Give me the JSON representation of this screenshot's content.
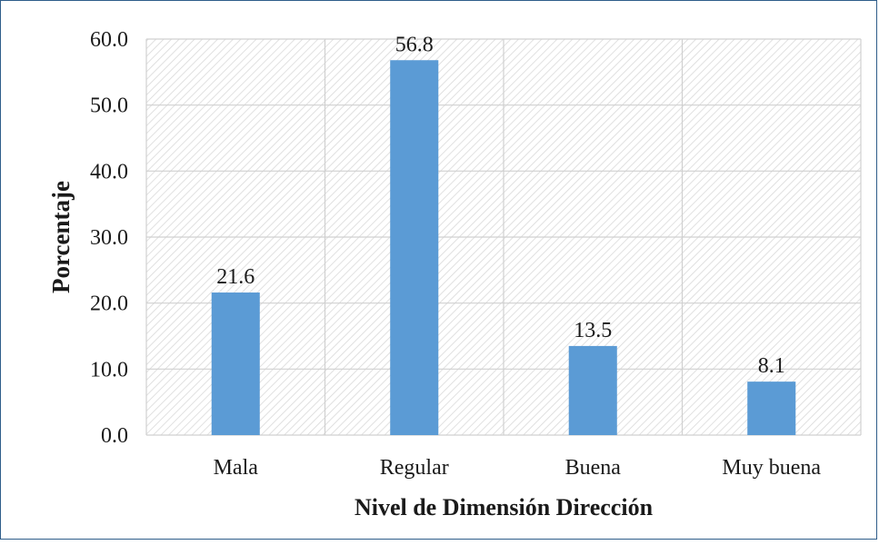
{
  "chart_data": {
    "type": "bar",
    "categories": [
      "Mala",
      "Regular",
      "Buena",
      "Muy buena"
    ],
    "values": [
      21.6,
      56.8,
      13.5,
      8.1
    ],
    "data_labels": [
      "21.6",
      "56.8",
      "13.5",
      "8.1"
    ],
    "title": "",
    "xlabel": "Nivel de Dimensión Dirección",
    "ylabel": "Porcentaje",
    "ylim": [
      0,
      60
    ],
    "yticks": [
      "0.0",
      "10.0",
      "20.0",
      "30.0",
      "40.0",
      "50.0",
      "60.0"
    ],
    "grid": true,
    "plot_background": "diagonal-hatch",
    "legend": "none",
    "colors": {
      "bar": "#5b9bd5",
      "grid": "#d0d0d0",
      "hatch": "#d9d9d9",
      "frame": "#2f5d8a"
    }
  }
}
